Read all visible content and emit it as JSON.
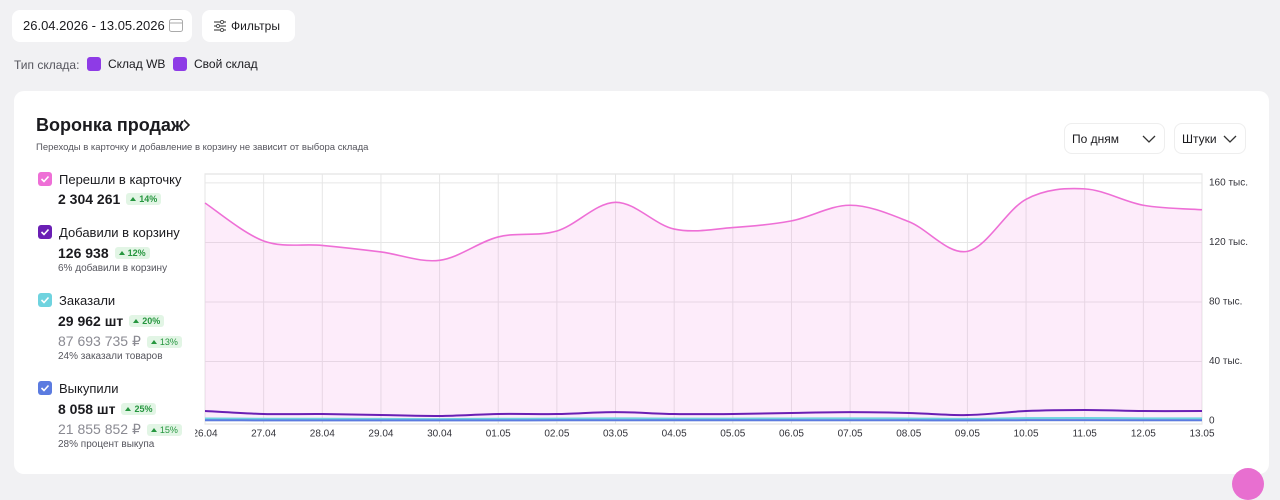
{
  "header": {
    "date_range": "26.04.2026 - 13.05.2026",
    "filters": "Фильтры",
    "warehouse_type_label": "Тип склада:",
    "warehouse_options": [
      "Склад WB",
      "Свой склад"
    ]
  },
  "funnel": {
    "period": "По дням",
    "unit": "Штуки",
    "metrics": [
      {
        "value": "2 304 261",
        "change": "14%"
      },
      {
        "value": "126 938",
        "change": "12%",
        "note": "6% добавили в корзину"
      },
      {
        "value": "29 962 шт",
        "change": "20%",
        "amount": "87 693 735 ₽",
        "amount_change": "13%",
        "note": "24% заказали товаров"
      },
      {
        "value": "8 058 шт",
        "change": "25%",
        "amount": "21 855 852 ₽",
        "amount_change": "15%",
        "note": "28% процент выкупа"
      }
    ]
  },
  "chart_data": {
    "type": "area",
    "title": "Воронка продаж",
    "subtitle": "Переходы в карточку и добавление в корзину не зависит от выбора склада",
    "categories": [
      "26.04",
      "27.04",
      "28.04",
      "29.04",
      "30.04",
      "01.05",
      "02.05",
      "03.05",
      "04.05",
      "05.05",
      "06.05",
      "07.05",
      "08.05",
      "09.05",
      "10.05",
      "11.05",
      "12.05",
      "13.05"
    ],
    "series": [
      {
        "name": "Перешли в карточку",
        "color": "#ee6fd6",
        "values": [
          146500,
          121000,
          118000,
          113600,
          108000,
          123700,
          127700,
          147000,
          129000,
          130000,
          134500,
          145000,
          134000,
          114000,
          149000,
          156000,
          145000,
          142000
        ]
      },
      {
        "name": "Добавили в корзину",
        "color": "#6a1fb4",
        "values": [
          6700,
          4700,
          4700,
          4000,
          3400,
          4700,
          4700,
          6000,
          4700,
          4700,
          5400,
          6000,
          5400,
          4000,
          6700,
          7400,
          6700,
          6700
        ]
      },
      {
        "name": "Заказали",
        "color": "#6fd3df",
        "values": [
          1700,
          1500,
          1500,
          1400,
          1300,
          1500,
          1600,
          1800,
          1600,
          1600,
          1700,
          1800,
          1700,
          1400,
          1900,
          2000,
          1800,
          1800
        ]
      },
      {
        "name": "Выкупили",
        "color": "#5b7be0",
        "values": [
          500,
          450,
          450,
          420,
          400,
          450,
          470,
          520,
          470,
          470,
          500,
          520,
          500,
          420,
          550,
          580,
          520,
          520
        ]
      }
    ],
    "ylim": [
      0,
      166000
    ],
    "yticks": [
      {
        "value": 0,
        "label": "0"
      },
      {
        "value": 40000,
        "label": "40 тыс."
      },
      {
        "value": 80000,
        "label": "80 тыс."
      },
      {
        "value": 120000,
        "label": "120 тыс."
      },
      {
        "value": 160000,
        "label": "160 тыс."
      }
    ],
    "grid": true
  }
}
